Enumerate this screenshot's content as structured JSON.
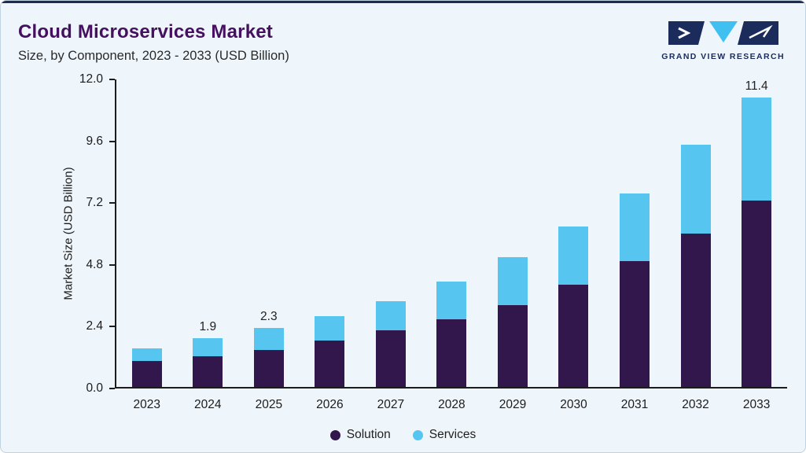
{
  "header": {
    "title": "Cloud Microservices Market",
    "subtitle": "Size, by Component, 2023 - 2033 (USD Billion)"
  },
  "logo": {
    "text": "GRAND VIEW RESEARCH",
    "navy": "#1b2b5c",
    "cyan": "#3fc0f0"
  },
  "colors": {
    "background": "#eef5fb",
    "top_strip": "#1e2c4f",
    "title_text": "#45105f",
    "axis": "#1c1c1c",
    "solution_bar": "#32174d",
    "services_bar": "#56c5f0"
  },
  "chart_data": {
    "type": "bar",
    "stacked": true,
    "title": "Cloud Microservices Market",
    "subtitle": "Size, by Component, 2023 - 2033 (USD Billion)",
    "ylabel": "Market Size (USD Billion)",
    "xlabel": "",
    "ylim": [
      0,
      12
    ],
    "yticks": [
      "12.0",
      "9.6",
      "7.2",
      "4.8",
      "2.4",
      "0.0"
    ],
    "grid": false,
    "legend_position": "bottom",
    "categories": [
      "2023",
      "2024",
      "2025",
      "2026",
      "2027",
      "2028",
      "2029",
      "2030",
      "2031",
      "2032",
      "2033"
    ],
    "series": [
      {
        "name": "Solution",
        "color": "#32174d",
        "values": [
          1.0,
          1.2,
          1.45,
          1.8,
          2.2,
          2.65,
          3.2,
          4.0,
          4.9,
          6.0,
          7.35
        ]
      },
      {
        "name": "Services",
        "color": "#56c5f0",
        "values": [
          0.5,
          0.7,
          0.85,
          0.95,
          1.15,
          1.45,
          1.85,
          2.25,
          2.65,
          3.45,
          4.05
        ]
      }
    ],
    "totals": [
      1.5,
      1.9,
      2.3,
      2.75,
      3.35,
      4.1,
      5.05,
      6.25,
      7.55,
      9.45,
      11.4
    ],
    "total_labels": [
      "",
      "1.9",
      "2.3",
      "",
      "",
      "",
      "",
      "",
      "",
      "",
      "11.4"
    ]
  }
}
